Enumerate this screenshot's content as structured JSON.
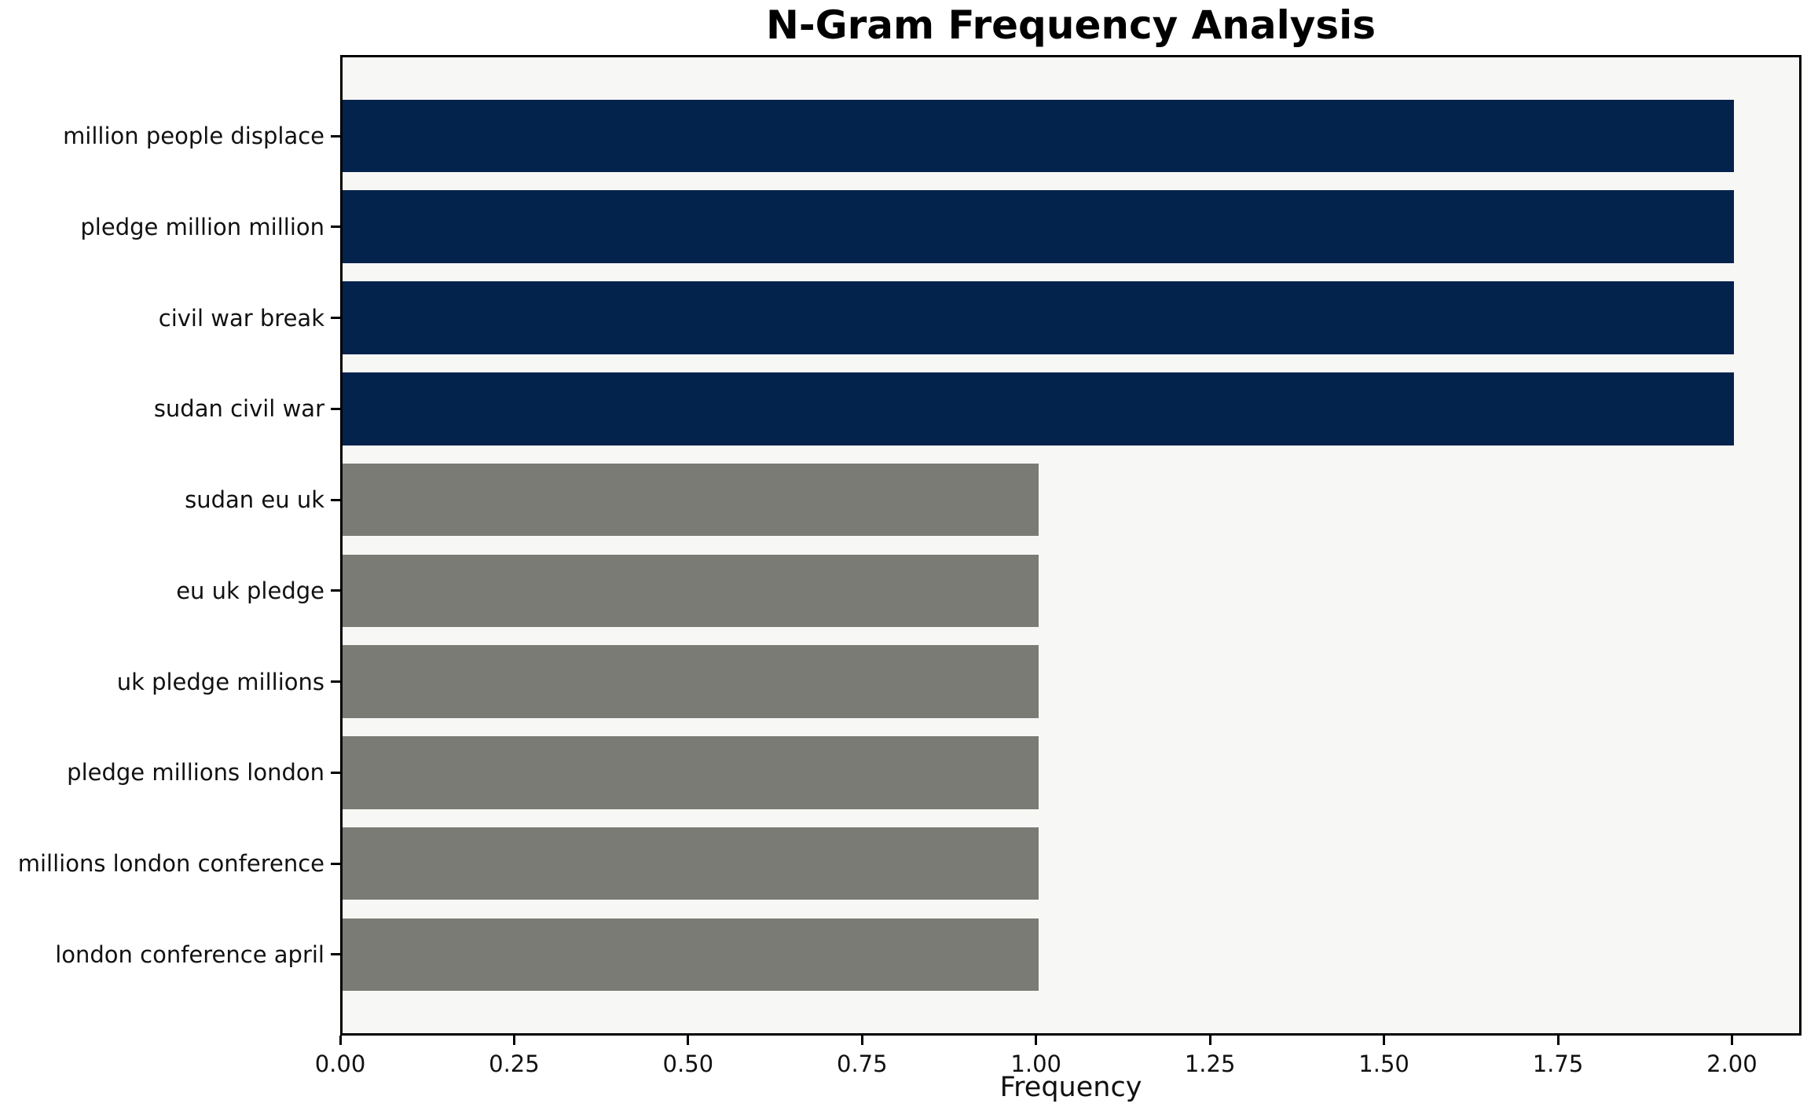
{
  "figure": {
    "background": "#ffffff"
  },
  "chart_data": {
    "type": "bar",
    "orientation": "horizontal",
    "title": "N-Gram Frequency Analysis",
    "xlabel": "Frequency",
    "ylabel": "",
    "categories": [
      "million people displace",
      "pledge million million",
      "civil war break",
      "sudan civil war",
      "sudan eu uk",
      "eu uk pledge",
      "uk pledge millions",
      "pledge millions london",
      "millions london conference",
      "london conference april"
    ],
    "values": [
      2,
      2,
      2,
      2,
      1,
      1,
      1,
      1,
      1,
      1
    ],
    "bar_colors": [
      "#03234c",
      "#03234c",
      "#03234c",
      "#03234c",
      "#7b7b75",
      "#7b7b75",
      "#7b7b75",
      "#7b7b75",
      "#7b7b75",
      "#7b7b75"
    ],
    "xlim": [
      0,
      2.1
    ],
    "x_tick_values": [
      0,
      0.25,
      0.5,
      0.75,
      1.0,
      1.25,
      1.5,
      1.75,
      2.0
    ],
    "x_tick_labels": [
      "0.00",
      "0.25",
      "0.50",
      "0.75",
      "1.00",
      "1.25",
      "1.50",
      "1.75",
      "2.00"
    ],
    "grid": false,
    "legend_position": "none",
    "plot_background": "#f7f7f6",
    "spine_color": "#000000",
    "bar_height_fraction": 0.8
  }
}
